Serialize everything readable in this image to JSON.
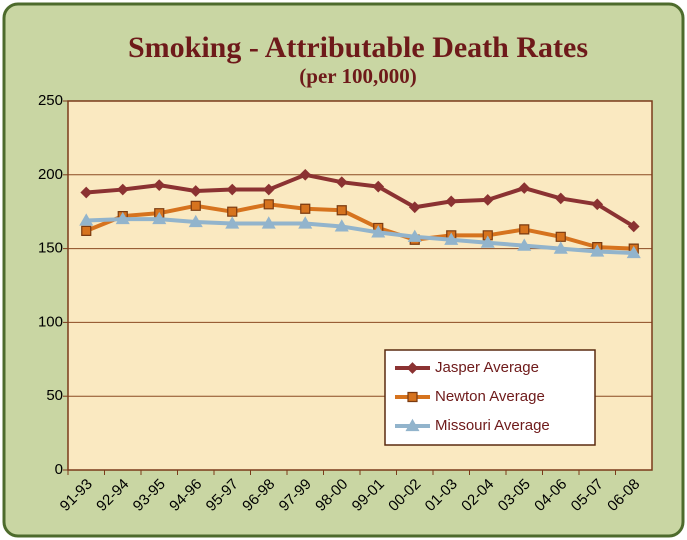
{
  "chart_data": {
    "type": "line",
    "title": "Smoking - Attributable Death Rates",
    "subtitle": "(per 100,000)",
    "categories": [
      "91-93",
      "92-94",
      "93-95",
      "94-96",
      "95-97",
      "96-98",
      "97-99",
      "98-00",
      "99-01",
      "00-02",
      "01-03",
      "02-04",
      "03-05",
      "04-06",
      "05-07",
      "06-08"
    ],
    "series": [
      {
        "name": "Jasper Average",
        "color": "#8b3232",
        "marker": "diamond",
        "values": [
          188,
          190,
          193,
          189,
          190,
          190,
          200,
          195,
          192,
          178,
          182,
          183,
          191,
          184,
          180,
          165
        ]
      },
      {
        "name": "Newton Average",
        "color": "#d6731e",
        "marker": "square",
        "values": [
          162,
          172,
          174,
          179,
          175,
          180,
          177,
          176,
          164,
          156,
          159,
          159,
          163,
          158,
          151,
          150
        ]
      },
      {
        "name": "Missouri Average",
        "color": "#92b4cc",
        "marker": "triangle",
        "values": [
          169,
          170,
          170,
          168,
          167,
          167,
          167,
          165,
          161,
          158,
          156,
          154,
          152,
          150,
          148,
          147
        ]
      }
    ],
    "ylim": [
      0,
      250
    ],
    "yticks": [
      0,
      50,
      100,
      150,
      200,
      250
    ],
    "grid": true,
    "legend": "lower right"
  }
}
